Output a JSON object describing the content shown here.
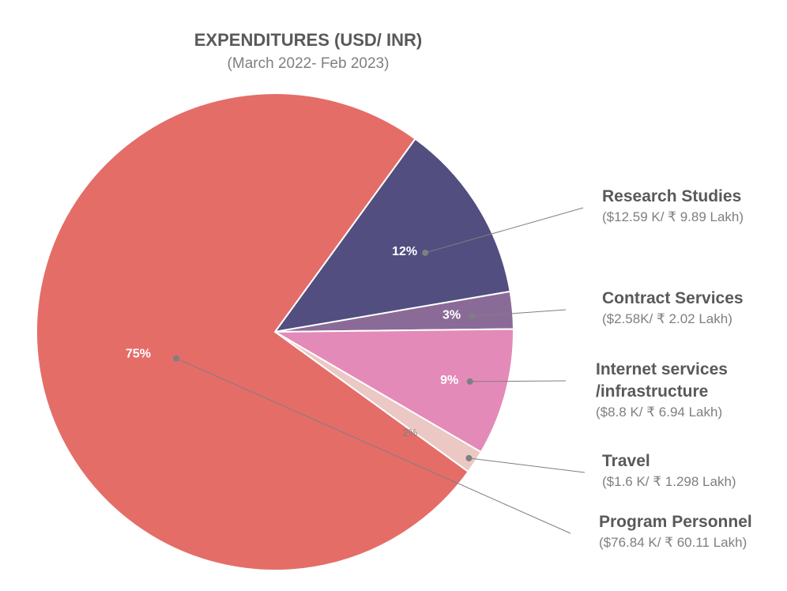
{
  "chart_data": {
    "type": "pie",
    "title": "EXPENDITURES (USD/ INR)",
    "subtitle": "(March 2022- Feb 2023)",
    "slices": [
      {
        "key": "research",
        "name": "Research Studies",
        "name_lines": [
          "Research Studies"
        ],
        "amount": "($12.59 K/ ₹ 9.89 Lakh)",
        "percent_label": "12%",
        "value": 12.59,
        "color": "#524e80"
      },
      {
        "key": "contract",
        "name": "Contract Services",
        "name_lines": [
          "Contract Services"
        ],
        "amount": "($2.58K/ ₹ 2.02 Lakh)",
        "percent_label": "3%",
        "value": 2.58,
        "color": "#8a6b97"
      },
      {
        "key": "internet",
        "name": "Internet services /infrastructure",
        "name_lines": [
          "Internet services",
          "/infrastructure"
        ],
        "amount": "($8.8 K/ ₹ 6.94 Lakh)",
        "percent_label": "9%",
        "value": 8.8,
        "color": "#e48ab9"
      },
      {
        "key": "travel",
        "name": "Travel",
        "name_lines": [
          "Travel"
        ],
        "amount": "($1.6 K/ ₹ 1.298 Lakh)",
        "percent_label": "2%",
        "value": 1.6,
        "color": "#ebc8c4"
      },
      {
        "key": "personnel",
        "name": "Program Personnel",
        "name_lines": [
          "Program Personnel"
        ],
        "amount": "($76.84 K/ ₹ 60.11 Lakh)",
        "percent_label": "75%",
        "value": 76.84,
        "color": "#e46d68"
      }
    ]
  }
}
